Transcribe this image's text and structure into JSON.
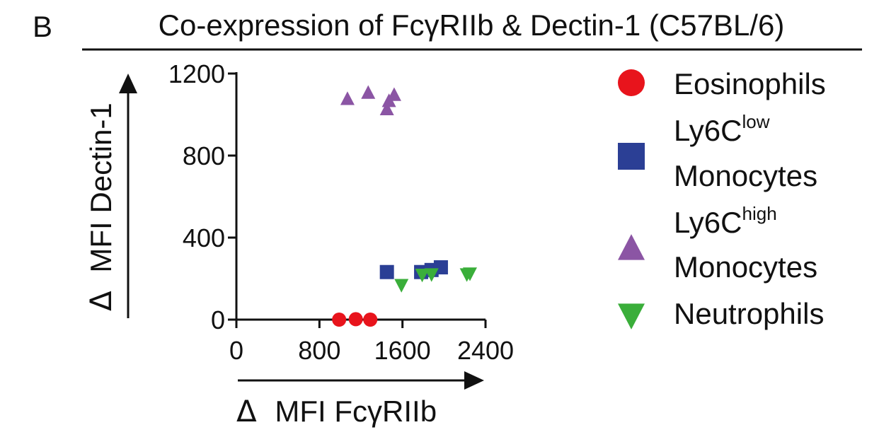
{
  "panel_label": "B",
  "chart_data": {
    "type": "scatter",
    "title": "Co-expression of FcγRIIb & Dectin-1 (C57BL/6)",
    "xlabel_prefix": "Δ",
    "xlabel": "MFI FcγRIIb",
    "ylabel_prefix": "Δ",
    "ylabel": "MFI Dectin-1",
    "xlim": [
      0,
      2400
    ],
    "ylim": [
      0,
      1200
    ],
    "xticks": [
      "0",
      "800",
      "1600",
      "2400"
    ],
    "xtick_values": [
      0,
      800,
      1600,
      2400
    ],
    "yticks": [
      "0",
      "400",
      "800",
      "1200"
    ],
    "ytick_values": [
      0,
      400,
      800,
      1200
    ],
    "legend_position": "right",
    "series": [
      {
        "name": "Eosinophils",
        "label_main": "Eosinophils",
        "label_sup": "",
        "label_line2": "",
        "marker": "circle",
        "color": "#e8141c",
        "points": [
          [
            990,
            0
          ],
          [
            1150,
            2
          ],
          [
            1290,
            0
          ]
        ]
      },
      {
        "name": "Ly6Clow Monocytes",
        "label_main": "Ly6C",
        "label_sup": "low",
        "label_line2": "Monocytes",
        "marker": "square",
        "color": "#2b3f95",
        "points": [
          [
            1450,
            232
          ],
          [
            1780,
            232
          ],
          [
            1880,
            242
          ],
          [
            1970,
            255
          ]
        ]
      },
      {
        "name": "Ly6Chigh Monocytes",
        "label_main": "Ly6C",
        "label_sup": "high",
        "label_line2": "Monocytes",
        "marker": "triangle-up",
        "color": "#8b55a4",
        "points": [
          [
            1070,
            1075
          ],
          [
            1270,
            1105
          ],
          [
            1450,
            1025
          ],
          [
            1470,
            1065
          ],
          [
            1520,
            1095
          ]
        ]
      },
      {
        "name": "Neutrophils",
        "label_main": "Neutrophils",
        "label_sup": "",
        "label_line2": "",
        "marker": "triangle-down",
        "color": "#3aae3a",
        "points": [
          [
            1590,
            170
          ],
          [
            1790,
            220
          ],
          [
            1880,
            222
          ],
          [
            2220,
            222
          ],
          [
            2250,
            226
          ]
        ]
      }
    ]
  }
}
